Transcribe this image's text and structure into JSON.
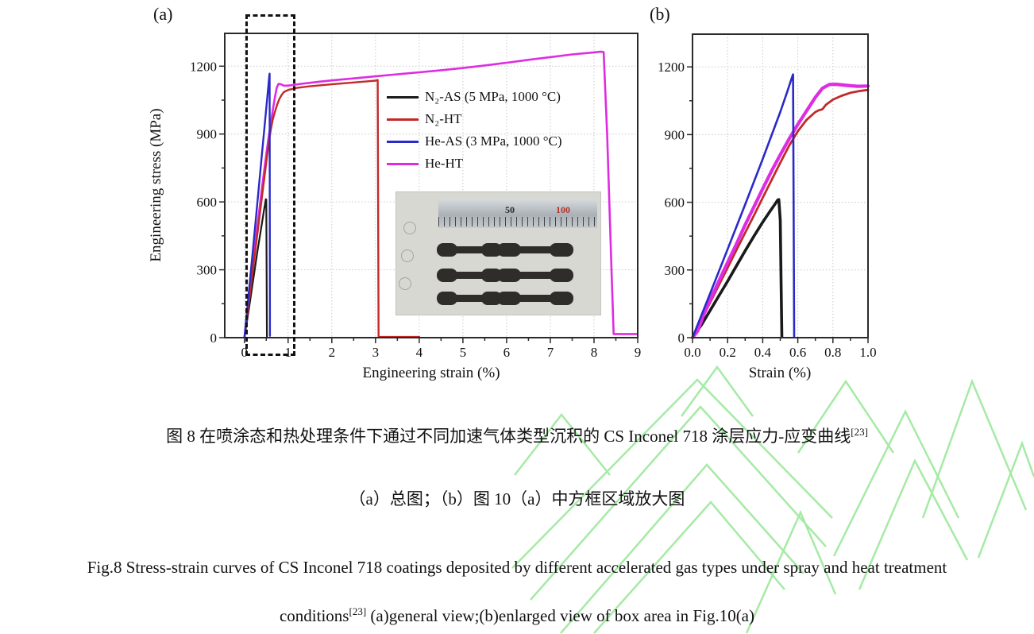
{
  "watermark": {
    "color": "#8fe58f"
  },
  "panels": {
    "a": {
      "label": "(a)",
      "x_label": "Engineering strain (%)",
      "y_label": "Engineering stress (MPa)"
    },
    "b": {
      "label": "(b)",
      "x_label": "Strain (%)",
      "y_label": ""
    }
  },
  "legend": {
    "items": [
      {
        "label": "N₂-AS (5 MPa, 1000 °C)",
        "color": "#1a1a1a"
      },
      {
        "label": "N₂-HT",
        "color": "#c32929"
      },
      {
        "label": "He-AS (3 MPa, 1000 °C)",
        "color": "#2a2ac8"
      },
      {
        "label": "He-HT",
        "color": "#de2ce2"
      }
    ]
  },
  "inset_photo": {
    "ruler_label_50": "50",
    "ruler_label_100": "100"
  },
  "captions": {
    "zh1": "图 8 在喷涂态和热处理条件下通过不同加速气体类型沉积的 CS Inconel 718 涂层应力-应变曲线",
    "ref": "[23]",
    "zh2": "（a）总图；（b）图 10（a）中方框区域放大图",
    "en1": "Fig.8 Stress-strain curves of CS Inconel 718 coatings deposited by different accelerated gas types under spray and heat treatment",
    "en2a": "conditions",
    "en2b": " (a)general view;(b)enlarged view of box area in Fig.10(a)"
  },
  "chart_data": [
    {
      "type": "line",
      "title": "(a) general view",
      "xlabel": "Engineering strain (%)",
      "ylabel": "Engineering stress (MPa)",
      "xlim": [
        -0.45,
        9
      ],
      "ylim": [
        0,
        1345
      ],
      "grid": true,
      "legend_position": "upper middle-right",
      "annotations": {
        "dashed_zoom_box_x_range": [
          0,
          1.05
        ]
      },
      "x_axis": {
        "ticks": [
          0,
          1,
          2,
          3,
          4,
          5,
          6,
          7,
          8,
          9
        ],
        "tick_labels": [
          "0",
          "1",
          "2",
          "3",
          "4",
          "5",
          "6",
          "7",
          "8",
          "9"
        ]
      },
      "y_axis": {
        "ticks": [
          0,
          300,
          600,
          900,
          1200
        ],
        "tick_labels": [
          "0",
          "300",
          "600",
          "900",
          "1200"
        ]
      },
      "series": [
        {
          "name": "N₂-AS (5 MPa, 1000 °C)",
          "color": "#1a1a1a",
          "width": 2.2,
          "points": [
            [
              0,
              0
            ],
            [
              0.1,
              125
            ],
            [
              0.2,
              255
            ],
            [
              0.3,
              385
            ],
            [
              0.4,
              505
            ],
            [
              0.45,
              565
            ],
            [
              0.48,
              600
            ],
            [
              0.49,
              612
            ],
            [
              0.5,
              610
            ],
            [
              0.515,
              5
            ]
          ]
        },
        {
          "name": "He-HT",
          "color": "#de2ce2",
          "width": 2.6,
          "points": [
            [
              0,
              0
            ],
            [
              0.1,
              166
            ],
            [
              0.2,
              333
            ],
            [
              0.3,
              500
            ],
            [
              0.4,
              660
            ],
            [
              0.5,
              810
            ],
            [
              0.55,
              880
            ],
            [
              0.6,
              945
            ],
            [
              0.65,
              1005
            ],
            [
              0.7,
              1065
            ],
            [
              0.74,
              1105
            ],
            [
              0.78,
              1122
            ],
            [
              0.84,
              1120
            ],
            [
              0.9,
              1114
            ],
            [
              1.0,
              1114
            ],
            [
              1.3,
              1122
            ],
            [
              1.7,
              1131
            ],
            [
              2.0,
              1137
            ],
            [
              2.5,
              1146
            ],
            [
              3.0,
              1155
            ],
            [
              3.5,
              1164
            ],
            [
              4.0,
              1173
            ],
            [
              4.5,
              1182
            ],
            [
              5.0,
              1192
            ],
            [
              5.5,
              1203
            ],
            [
              6.0,
              1215
            ],
            [
              6.5,
              1228
            ],
            [
              7.0,
              1240
            ],
            [
              7.5,
              1252
            ],
            [
              8.0,
              1261
            ],
            [
              8.15,
              1264
            ],
            [
              8.22,
              1262
            ],
            [
              8.3,
              900
            ],
            [
              8.4,
              300
            ],
            [
              8.45,
              16
            ],
            [
              8.98,
              16
            ]
          ]
        },
        {
          "name": "N₂-HT",
          "color": "#c32929",
          "width": 2.4,
          "points": [
            [
              0,
              0
            ],
            [
              0.1,
              155
            ],
            [
              0.2,
              310
            ],
            [
              0.3,
              465
            ],
            [
              0.4,
              620
            ],
            [
              0.5,
              775
            ],
            [
              0.55,
              850
            ],
            [
              0.6,
              915
            ],
            [
              0.65,
              965
            ],
            [
              0.7,
              1000
            ],
            [
              0.75,
              1030
            ],
            [
              0.8,
              1055
            ],
            [
              0.85,
              1072
            ],
            [
              0.9,
              1085
            ],
            [
              1.0,
              1095
            ],
            [
              1.2,
              1104
            ],
            [
              1.5,
              1111
            ],
            [
              2.0,
              1120
            ],
            [
              2.5,
              1128
            ],
            [
              2.8,
              1133
            ],
            [
              3.0,
              1136
            ],
            [
              3.05,
              1139
            ],
            [
              3.07,
              4
            ],
            [
              3.3,
              3
            ],
            [
              4.0,
              3
            ]
          ]
        },
        {
          "name": "He-AS (3 MPa, 1000 °C)",
          "color": "#2a2ac8",
          "width": 2.4,
          "points": [
            [
              0,
              0
            ],
            [
              0.1,
              200
            ],
            [
              0.2,
              400
            ],
            [
              0.3,
              605
            ],
            [
              0.4,
              810
            ],
            [
              0.5,
              1015
            ],
            [
              0.55,
              1115
            ],
            [
              0.57,
              1158
            ],
            [
              0.577,
              1167
            ],
            [
              0.584,
              8
            ]
          ]
        }
      ]
    },
    {
      "type": "line",
      "title": "(b) enlarged view of box area",
      "xlabel": "Strain (%)",
      "ylabel": "",
      "xlim": [
        0,
        1.0
      ],
      "ylim": [
        0,
        1345
      ],
      "grid": true,
      "x_axis": {
        "ticks": [
          0,
          0.2,
          0.4,
          0.6,
          0.8,
          1.0
        ],
        "tick_labels": [
          "0.0",
          "0.2",
          "0.4",
          "0.6",
          "0.8",
          "1.0"
        ]
      },
      "y_axis": {
        "ticks": [
          0,
          300,
          600,
          900,
          1200
        ],
        "tick_labels": [
          "0",
          "300",
          "600",
          "900",
          "1200"
        ]
      },
      "series": [
        {
          "name": "N₂-AS (5 MPa, 1000 °C)",
          "color": "#1a1a1a",
          "width": 3.6,
          "points": [
            [
              0,
              0
            ],
            [
              0.05,
              55
            ],
            [
              0.1,
              120
            ],
            [
              0.15,
              185
            ],
            [
              0.2,
              250
            ],
            [
              0.25,
              318
            ],
            [
              0.3,
              385
            ],
            [
              0.35,
              450
            ],
            [
              0.4,
              512
            ],
            [
              0.44,
              558
            ],
            [
              0.47,
              592
            ],
            [
              0.485,
              610
            ],
            [
              0.492,
              612
            ],
            [
              0.5,
              520
            ],
            [
              0.505,
              230
            ],
            [
              0.509,
              5
            ]
          ]
        },
        {
          "name": "N₂-HT",
          "color": "#c32929",
          "width": 2.8,
          "points": [
            [
              0,
              0
            ],
            [
              0.05,
              78
            ],
            [
              0.1,
              155
            ],
            [
              0.15,
              232
            ],
            [
              0.2,
              310
            ],
            [
              0.25,
              388
            ],
            [
              0.3,
              465
            ],
            [
              0.35,
              542
            ],
            [
              0.4,
              620
            ],
            [
              0.45,
              698
            ],
            [
              0.5,
              775
            ],
            [
              0.55,
              850
            ],
            [
              0.6,
              915
            ],
            [
              0.65,
              965
            ],
            [
              0.7,
              1000
            ],
            [
              0.72,
              1008
            ],
            [
              0.74,
              1012
            ],
            [
              0.76,
              1032
            ],
            [
              0.8,
              1055
            ],
            [
              0.85,
              1072
            ],
            [
              0.9,
              1085
            ],
            [
              0.95,
              1093
            ],
            [
              1.0,
              1098
            ]
          ]
        },
        {
          "name": "He-HT",
          "color": "#de2ce2",
          "width": 4.2,
          "points": [
            [
              0,
              0
            ],
            [
              0.03,
              30
            ],
            [
              0.06,
              95
            ],
            [
              0.1,
              166
            ],
            [
              0.15,
              250
            ],
            [
              0.2,
              333
            ],
            [
              0.25,
              415
            ],
            [
              0.3,
              500
            ],
            [
              0.35,
              580
            ],
            [
              0.4,
              660
            ],
            [
              0.45,
              738
            ],
            [
              0.5,
              810
            ],
            [
              0.55,
              880
            ],
            [
              0.6,
              945
            ],
            [
              0.65,
              1005
            ],
            [
              0.7,
              1065
            ],
            [
              0.74,
              1105
            ],
            [
              0.78,
              1122
            ],
            [
              0.82,
              1123
            ],
            [
              0.88,
              1118
            ],
            [
              0.94,
              1114
            ],
            [
              1.0,
              1115
            ]
          ]
        },
        {
          "name": "He-AS (3 MPa, 1000 °C)",
          "color": "#2a2ac8",
          "width": 2.6,
          "points": [
            [
              0,
              0
            ],
            [
              0.1,
              195
            ],
            [
              0.2,
              392
            ],
            [
              0.3,
              590
            ],
            [
              0.4,
              792
            ],
            [
              0.5,
              1000
            ],
            [
              0.54,
              1090
            ],
            [
              0.565,
              1150
            ],
            [
              0.573,
              1167
            ],
            [
              0.579,
              6
            ]
          ]
        }
      ]
    }
  ]
}
